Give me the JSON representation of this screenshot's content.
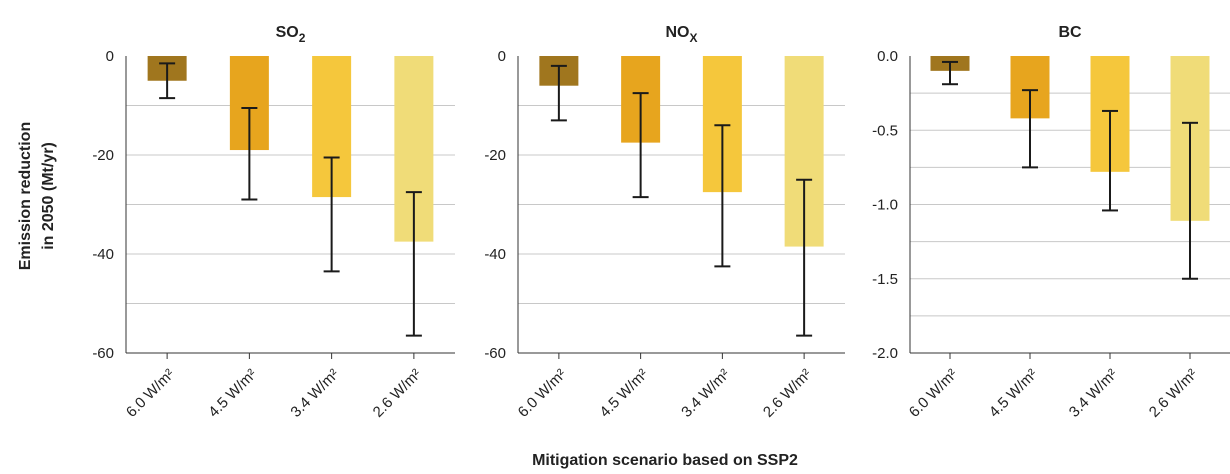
{
  "figure": {
    "xlabel": "Mitigation scenario based on SSP2",
    "ylabel_line1": "Emission reduction",
    "ylabel_line2": "in 2050 (Mt/yr)",
    "bar_colors": [
      "#A0761E",
      "#E7A51E",
      "#F5C73C",
      "#F0DC78"
    ]
  },
  "chart_data": [
    {
      "type": "bar",
      "title_main": "SO",
      "title_sub": "2",
      "categories": [
        "6.0 W/m²",
        "4.5 W/m²",
        "3.4 W/m²",
        "2.6 W/m²"
      ],
      "values": [
        -5,
        -19,
        -28.5,
        -37.5
      ],
      "error_low": [
        -8.5,
        -29,
        -43.5,
        -56.5
      ],
      "error_high": [
        -1.5,
        -10.5,
        -20.5,
        -27.5
      ],
      "ylim": [
        -60,
        0
      ],
      "yticks": [
        0,
        -20,
        -40,
        -60
      ],
      "ytick_labels": [
        "0",
        "-20",
        "-40",
        "-60"
      ],
      "grid_values": [
        -10,
        -30,
        -50
      ]
    },
    {
      "type": "bar",
      "title_main": "NO",
      "title_sub": "X",
      "categories": [
        "6.0 W/m²",
        "4.5 W/m²",
        "3.4 W/m²",
        "2.6 W/m²"
      ],
      "values": [
        -6,
        -17.5,
        -27.5,
        -38.5
      ],
      "error_low": [
        -13,
        -28.5,
        -42.5,
        -56.5
      ],
      "error_high": [
        -2,
        -7.5,
        -14,
        -25
      ],
      "ylim": [
        -60,
        0
      ],
      "yticks": [
        0,
        -20,
        -40,
        -60
      ],
      "ytick_labels": [
        "0",
        "-20",
        "-40",
        "-60"
      ],
      "grid_values": [
        -10,
        -30,
        -50
      ]
    },
    {
      "type": "bar",
      "title_main": "BC",
      "title_sub": "",
      "categories": [
        "6.0 W/m²",
        "4.5 W/m²",
        "3.4 W/m²",
        "2.6 W/m²"
      ],
      "values": [
        -0.1,
        -0.42,
        -0.78,
        -1.11
      ],
      "error_low": [
        -0.19,
        -0.75,
        -1.04,
        -1.5
      ],
      "error_high": [
        -0.04,
        -0.23,
        -0.37,
        -0.45
      ],
      "ylim": [
        -2.0,
        0.0
      ],
      "yticks": [
        0.0,
        -0.5,
        -1.0,
        -1.5,
        -2.0
      ],
      "ytick_labels": [
        "0.0",
        "-0.5",
        "-1.0",
        "-1.5",
        "-2.0"
      ],
      "grid_values": [
        -0.25,
        -0.75,
        -1.25,
        -1.75
      ]
    }
  ]
}
